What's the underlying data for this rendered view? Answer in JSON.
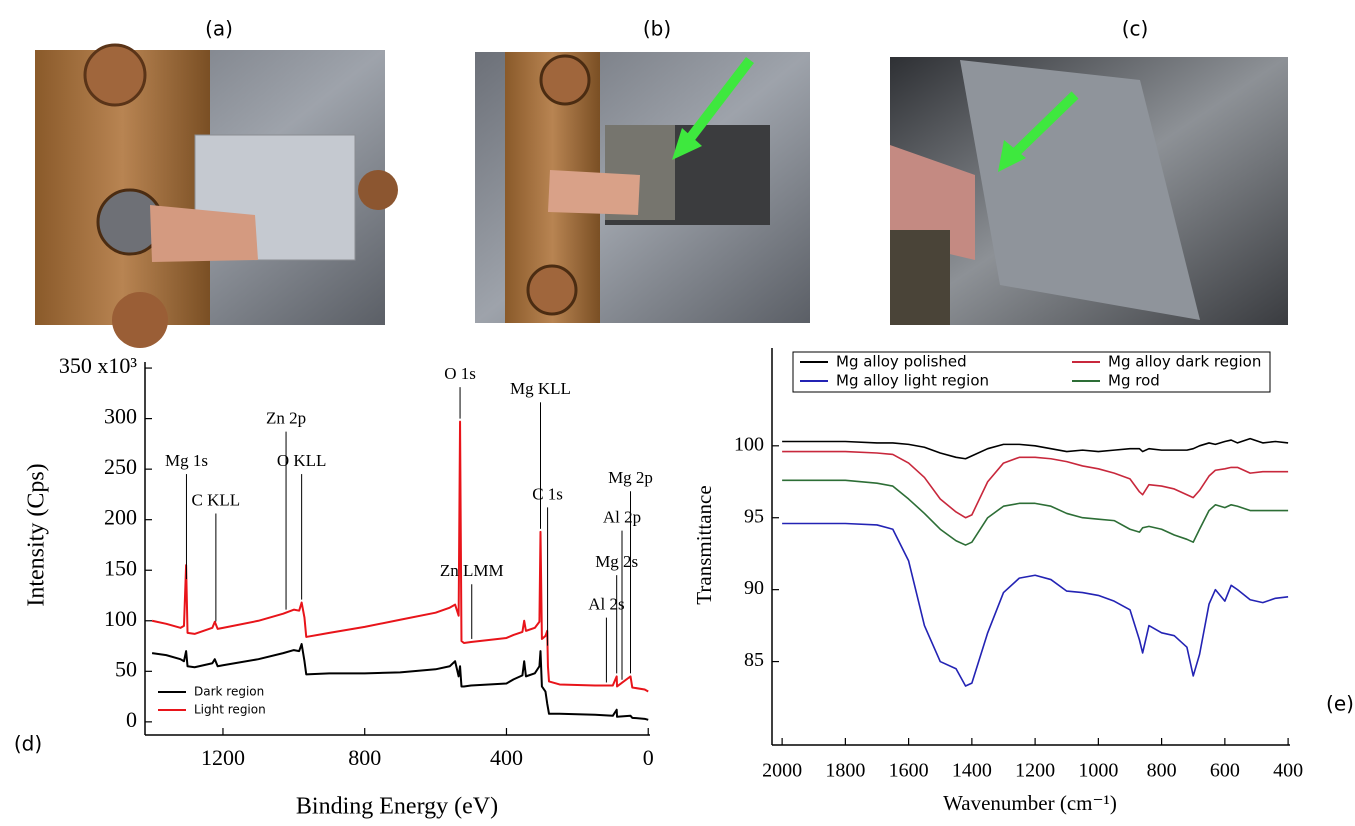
{
  "photos": [
    {
      "label": "(a)"
    },
    {
      "label": "(b)"
    },
    {
      "label": "(c)"
    }
  ],
  "chart_data": [
    {
      "type": "line",
      "panel_label": "(d)",
      "x_label": "Binding Energy (eV)",
      "y_label": "Intensity (Cps)",
      "xlim": [
        1420,
        -5
      ],
      "xticks": [
        1200,
        800,
        400,
        0
      ],
      "ylim": [
        -13,
        356
      ],
      "yticks": [
        0,
        50,
        100,
        150,
        200,
        250,
        300,
        {
          "value": 350,
          "label": "350 x10³"
        }
      ],
      "legend": "lower left",
      "x": [
        1400,
        1360,
        1320,
        1310,
        1304,
        1300,
        1280,
        1230,
        1223,
        1215,
        1200,
        1100,
        1030,
        1000,
        985,
        978,
        970,
        965,
        900,
        800,
        700,
        600,
        560,
        545,
        535,
        531,
        527,
        520,
        500,
        400,
        380,
        355,
        350,
        345,
        320,
        307,
        304,
        300,
        290,
        285,
        283,
        280,
        250,
        150,
        100,
        89,
        88,
        50,
        45,
        10,
        0
      ],
      "series": [
        {
          "name": "Dark region",
          "color": "#000000",
          "values": [
            68,
            66,
            62,
            60,
            70,
            55,
            54,
            58,
            62,
            55,
            56,
            62,
            68,
            71,
            70,
            77,
            60,
            47,
            48,
            48,
            49,
            52,
            55,
            60,
            45,
            55,
            35,
            35,
            36,
            38,
            42,
            46,
            60,
            45,
            48,
            55,
            70,
            35,
            30,
            18,
            14,
            8,
            8,
            7,
            6,
            12,
            5,
            6,
            4,
            3,
            2
          ]
        },
        {
          "name": "Light region",
          "color": "#e8141a",
          "values": [
            100,
            97,
            93,
            95,
            155,
            88,
            87,
            93,
            99,
            92,
            93,
            100,
            107,
            111,
            110,
            118,
            103,
            84,
            88,
            94,
            101,
            108,
            113,
            116,
            105,
            297,
            80,
            78,
            79,
            83,
            86,
            89,
            100,
            90,
            93,
            99,
            188,
            82,
            85,
            90,
            55,
            40,
            37,
            36,
            36,
            45,
            35,
            45,
            34,
            32,
            30
          ]
        }
      ],
      "annotations": [
        {
          "text": "Mg 1s",
          "x": 1303,
          "y": 257
        },
        {
          "text": "C KLL",
          "x": 1220,
          "y": 218
        },
        {
          "text": "Zn 2p",
          "x": 1022,
          "y": 299
        },
        {
          "text": "O KLL",
          "x": 978,
          "y": 257
        },
        {
          "text": "O 1s",
          "x": 531,
          "y": 343
        },
        {
          "text": "Mg KLL",
          "x": 304,
          "y": 328
        },
        {
          "text": "Zn LMM",
          "x": 498,
          "y": 148
        },
        {
          "text": "C 1s",
          "x": 284,
          "y": 224
        },
        {
          "text": "Mg 2p",
          "x": 50,
          "y": 240
        },
        {
          "text": "Al 2p",
          "x": 74,
          "y": 201
        },
        {
          "text": "Mg 2s",
          "x": 89,
          "y": 157
        },
        {
          "text": "Al 2s",
          "x": 118,
          "y": 115
        }
      ]
    },
    {
      "type": "line",
      "panel_label": "(e)",
      "x_label": "Wavenumber (cm⁻¹)",
      "y_label": "Transmittance",
      "xlim": [
        2032,
        394
      ],
      "xticks": [
        2000,
        1800,
        1600,
        1400,
        1200,
        1000,
        800,
        600,
        400
      ],
      "ylim": [
        79.2,
        106.8
      ],
      "yticks": [
        85,
        90,
        95,
        100
      ],
      "legend": "upper center",
      "x": [
        2000,
        1900,
        1800,
        1700,
        1650,
        1600,
        1550,
        1500,
        1450,
        1420,
        1400,
        1350,
        1300,
        1250,
        1200,
        1150,
        1100,
        1050,
        1000,
        950,
        900,
        870,
        860,
        840,
        800,
        760,
        720,
        700,
        680,
        650,
        630,
        600,
        580,
        560,
        520,
        480,
        440,
        400
      ],
      "series": [
        {
          "name": "Mg alloy polished",
          "color": "#000000",
          "values": [
            100.3,
            100.3,
            100.3,
            100.2,
            100.2,
            100.1,
            99.9,
            99.5,
            99.2,
            99.1,
            99.3,
            99.8,
            100.1,
            100.1,
            100.0,
            99.8,
            99.6,
            99.7,
            99.6,
            99.7,
            99.8,
            99.8,
            99.6,
            99.8,
            99.7,
            99.7,
            99.7,
            99.8,
            100.0,
            100.2,
            100.1,
            100.3,
            100.4,
            100.2,
            100.5,
            100.2,
            100.3,
            100.2
          ]
        },
        {
          "name": "Mg alloy dark region",
          "color": "#c8283c",
          "values": [
            99.6,
            99.6,
            99.6,
            99.5,
            99.4,
            98.8,
            97.8,
            96.3,
            95.4,
            95.0,
            95.2,
            97.5,
            98.8,
            99.2,
            99.2,
            99.1,
            98.9,
            98.6,
            98.4,
            98.1,
            97.7,
            96.8,
            96.6,
            97.3,
            97.2,
            97.0,
            96.6,
            96.4,
            96.9,
            97.9,
            98.3,
            98.4,
            98.5,
            98.5,
            98.1,
            98.2,
            98.2,
            98.2
          ]
        },
        {
          "name": "Mg alloy light region",
          "color": "#2323b4",
          "values": [
            94.6,
            94.6,
            94.6,
            94.5,
            94.2,
            92.0,
            87.5,
            85.0,
            84.5,
            83.3,
            83.5,
            87.0,
            89.8,
            90.8,
            91.0,
            90.7,
            89.9,
            89.8,
            89.6,
            89.2,
            88.6,
            86.5,
            85.6,
            87.5,
            87.0,
            86.8,
            86.0,
            84.0,
            85.5,
            89.0,
            90.0,
            89.2,
            90.3,
            90.0,
            89.3,
            89.1,
            89.4,
            89.5
          ]
        },
        {
          "name": "Mg rod",
          "color": "#2d6e36",
          "values": [
            97.6,
            97.6,
            97.6,
            97.4,
            97.2,
            96.3,
            95.3,
            94.2,
            93.4,
            93.1,
            93.3,
            95.0,
            95.8,
            96.0,
            96.0,
            95.8,
            95.3,
            95.0,
            94.9,
            94.8,
            94.2,
            94.0,
            94.3,
            94.4,
            94.2,
            93.8,
            93.5,
            93.3,
            94.2,
            95.5,
            95.9,
            95.7,
            95.9,
            95.8,
            95.5,
            95.5,
            95.5,
            95.5
          ]
        }
      ]
    }
  ]
}
